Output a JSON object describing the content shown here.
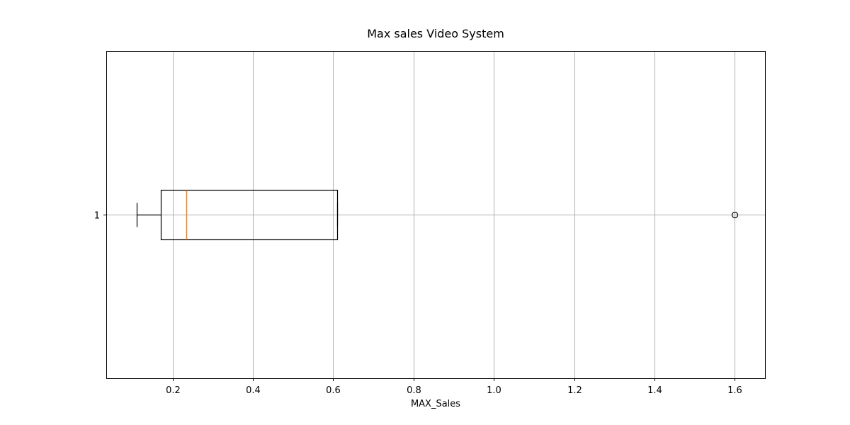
{
  "chart_data": {
    "type": "boxplot",
    "orientation": "horizontal",
    "title": "Max sales Video System",
    "xlabel": "MAX_Sales",
    "ylabel": "",
    "xlim": [
      0.035,
      1.675
    ],
    "xticks": [
      0.2,
      0.4,
      0.6,
      0.8,
      1.0,
      1.2,
      1.4,
      1.6
    ],
    "xtick_labels": [
      "0.2",
      "0.4",
      "0.6",
      "0.8",
      "1.0",
      "1.2",
      "1.4",
      "1.6"
    ],
    "yticks": [
      1
    ],
    "ytick_labels": [
      "1"
    ],
    "grid": true,
    "boxes": [
      {
        "position": 1,
        "whisker_low": 0.11,
        "q1": 0.17,
        "median": 0.235,
        "q3": 0.61,
        "whisker_high": 0.61,
        "outliers": [
          1.6
        ]
      }
    ],
    "colors": {
      "box": "#000000",
      "median": "#ff7f0e",
      "grid": "#b0b0b0",
      "outlier": "#000000"
    }
  }
}
